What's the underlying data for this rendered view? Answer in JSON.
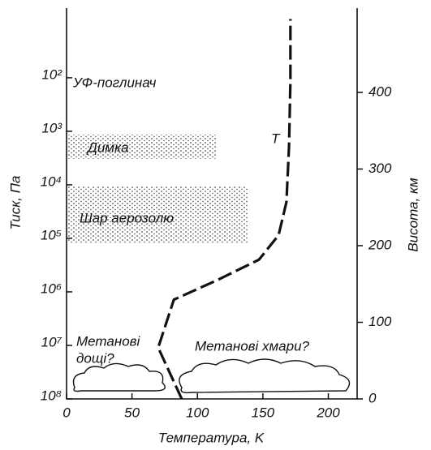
{
  "chart_data": {
    "type": "line",
    "x_label": "Температура, K",
    "y_label": "Тиск, Па",
    "y2_label": "Висота, км",
    "x": [
      88,
      70,
      82,
      116,
      147,
      162,
      168,
      170,
      171,
      171
    ],
    "series": [
      {
        "name": "T",
        "color": "#111111",
        "values": [
          100000000,
          11000000,
          1400000,
          590000,
          250000,
          87000,
          21000,
          1900,
          115,
          8
        ]
      }
    ],
    "xlim": [
      0,
      222
    ],
    "xticks": [
      0,
      50,
      100,
      150,
      200
    ],
    "ylim": [
      100000000,
      5
    ],
    "log_y": true,
    "yticks": [
      {
        "value": 100,
        "label": "10²"
      },
      {
        "value": 1000,
        "label": "10³"
      },
      {
        "value": 10000,
        "label": "10⁴"
      },
      {
        "value": 100000,
        "label": "10⁵"
      },
      {
        "value": 1000000,
        "label": "10⁶"
      },
      {
        "value": 10000000,
        "label": "10⁷"
      },
      {
        "value": 100000000,
        "label": "10⁸"
      }
    ],
    "y2lim": [
      0,
      510
    ],
    "y2ticks": [
      0,
      100,
      200,
      300,
      400
    ],
    "annotations": {
      "uv": "УФ-поглинач",
      "haze": "Димка",
      "aerosol": "Шар аерозолю",
      "rain": [
        "Метанові",
        "дощі?"
      ],
      "clouds": "Метанові хмари?"
    }
  }
}
